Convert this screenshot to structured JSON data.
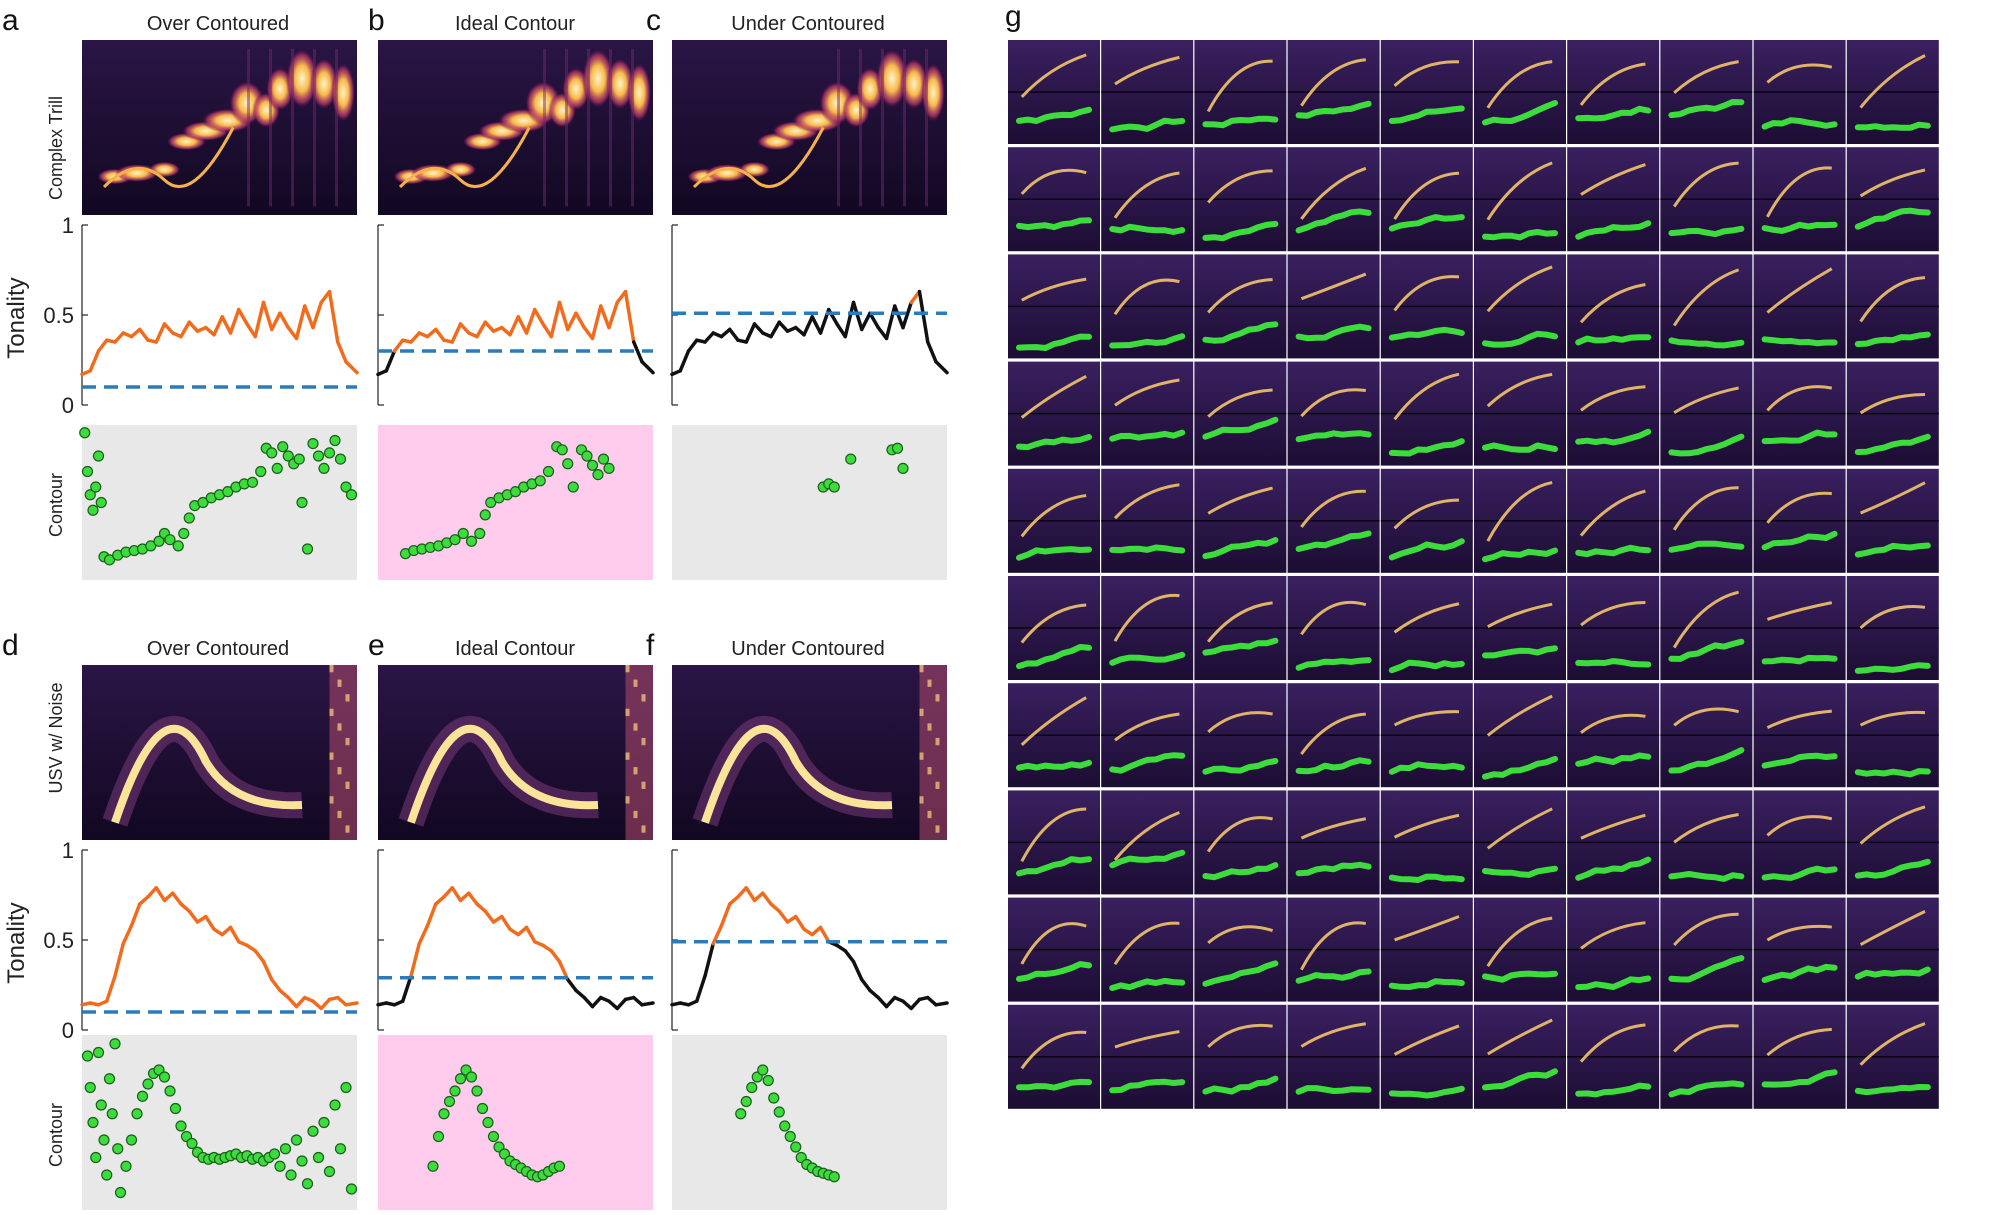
{
  "figure": {
    "panel_letters": [
      "a",
      "b",
      "c",
      "d",
      "e",
      "f",
      "g"
    ],
    "column_titles": [
      "Over Contoured",
      "Ideal Contour",
      "Under Contoured"
    ],
    "row_labels": {
      "top_spectrogram": "Complex Trill",
      "bottom_spectrogram": "USV w/ Noise",
      "tonality": "Tonality",
      "contour": "Contour"
    },
    "colors": {
      "above_threshold": "#f26b1d",
      "below_threshold": "#111111",
      "threshold": "#2b7bba",
      "contour_point": "#3ddc3d",
      "contour_point_edge": "#1b5e1b",
      "ideal_background": "#ffccee",
      "other_background": "#e8e8e8",
      "spectrogram_background": "#1a0b2e"
    },
    "grid_g": {
      "rows": 10,
      "cols": 10
    }
  },
  "chart_data": [
    {
      "type": "line",
      "panel": "a",
      "title": "Over Contoured",
      "ylabel": "Tonality",
      "ylim": [
        0,
        1
      ],
      "yticks": [
        "0",
        "0.5",
        "1"
      ],
      "threshold": 0.1,
      "x": [
        0,
        0.03,
        0.06,
        0.09,
        0.12,
        0.15,
        0.18,
        0.21,
        0.24,
        0.27,
        0.3,
        0.33,
        0.36,
        0.39,
        0.42,
        0.45,
        0.48,
        0.51,
        0.54,
        0.57,
        0.6,
        0.63,
        0.66,
        0.69,
        0.72,
        0.75,
        0.78,
        0.81,
        0.84,
        0.87,
        0.9,
        0.93,
        0.96,
        1.0
      ],
      "y": [
        0.17,
        0.19,
        0.3,
        0.36,
        0.35,
        0.4,
        0.38,
        0.42,
        0.36,
        0.35,
        0.45,
        0.4,
        0.38,
        0.46,
        0.41,
        0.43,
        0.39,
        0.49,
        0.4,
        0.53,
        0.45,
        0.38,
        0.57,
        0.42,
        0.51,
        0.43,
        0.37,
        0.55,
        0.43,
        0.57,
        0.63,
        0.35,
        0.24,
        0.18
      ]
    },
    {
      "type": "line",
      "panel": "b",
      "title": "Ideal Contour",
      "ylabel": "Tonality",
      "ylim": [
        0,
        1
      ],
      "threshold": 0.3,
      "x": [
        0,
        0.03,
        0.06,
        0.09,
        0.12,
        0.15,
        0.18,
        0.21,
        0.24,
        0.27,
        0.3,
        0.33,
        0.36,
        0.39,
        0.42,
        0.45,
        0.48,
        0.51,
        0.54,
        0.57,
        0.6,
        0.63,
        0.66,
        0.69,
        0.72,
        0.75,
        0.78,
        0.81,
        0.84,
        0.87,
        0.9,
        0.93,
        0.96,
        1.0
      ],
      "y": [
        0.17,
        0.19,
        0.3,
        0.36,
        0.35,
        0.4,
        0.38,
        0.42,
        0.36,
        0.35,
        0.45,
        0.4,
        0.38,
        0.46,
        0.41,
        0.43,
        0.39,
        0.49,
        0.4,
        0.53,
        0.45,
        0.38,
        0.57,
        0.42,
        0.51,
        0.43,
        0.37,
        0.55,
        0.43,
        0.57,
        0.63,
        0.35,
        0.24,
        0.18
      ]
    },
    {
      "type": "line",
      "panel": "c",
      "title": "Under Contoured",
      "ylabel": "Tonality",
      "ylim": [
        0,
        1
      ],
      "threshold": 0.51,
      "x": [
        0,
        0.03,
        0.06,
        0.09,
        0.12,
        0.15,
        0.18,
        0.21,
        0.24,
        0.27,
        0.3,
        0.33,
        0.36,
        0.39,
        0.42,
        0.45,
        0.48,
        0.51,
        0.54,
        0.57,
        0.6,
        0.63,
        0.66,
        0.69,
        0.72,
        0.75,
        0.78,
        0.81,
        0.84,
        0.87,
        0.9,
        0.93,
        0.96,
        1.0
      ],
      "y": [
        0.17,
        0.19,
        0.3,
        0.36,
        0.35,
        0.4,
        0.38,
        0.42,
        0.36,
        0.35,
        0.45,
        0.4,
        0.38,
        0.46,
        0.41,
        0.43,
        0.39,
        0.49,
        0.4,
        0.53,
        0.45,
        0.38,
        0.57,
        0.42,
        0.51,
        0.43,
        0.37,
        0.55,
        0.43,
        0.57,
        0.63,
        0.35,
        0.24,
        0.18
      ]
    },
    {
      "type": "line",
      "panel": "d",
      "title": "Over Contoured",
      "ylabel": "Tonality",
      "ylim": [
        0,
        1
      ],
      "yticks": [
        "0",
        "0.5",
        "1"
      ],
      "threshold": 0.1,
      "x": [
        0,
        0.03,
        0.06,
        0.09,
        0.12,
        0.15,
        0.18,
        0.21,
        0.24,
        0.27,
        0.3,
        0.33,
        0.36,
        0.39,
        0.42,
        0.45,
        0.48,
        0.51,
        0.54,
        0.57,
        0.6,
        0.63,
        0.66,
        0.69,
        0.72,
        0.75,
        0.78,
        0.81,
        0.84,
        0.87,
        0.9,
        0.93,
        0.96,
        1.0
      ],
      "y": [
        0.14,
        0.15,
        0.14,
        0.16,
        0.3,
        0.48,
        0.58,
        0.7,
        0.74,
        0.79,
        0.72,
        0.76,
        0.7,
        0.66,
        0.6,
        0.63,
        0.56,
        0.53,
        0.57,
        0.49,
        0.47,
        0.44,
        0.38,
        0.28,
        0.22,
        0.18,
        0.13,
        0.18,
        0.16,
        0.12,
        0.17,
        0.18,
        0.14,
        0.15
      ]
    },
    {
      "type": "line",
      "panel": "e",
      "title": "Ideal Contour",
      "ylabel": "Tonality",
      "ylim": [
        0,
        1
      ],
      "threshold": 0.29,
      "x": [
        0,
        0.03,
        0.06,
        0.09,
        0.12,
        0.15,
        0.18,
        0.21,
        0.24,
        0.27,
        0.3,
        0.33,
        0.36,
        0.39,
        0.42,
        0.45,
        0.48,
        0.51,
        0.54,
        0.57,
        0.6,
        0.63,
        0.66,
        0.69,
        0.72,
        0.75,
        0.78,
        0.81,
        0.84,
        0.87,
        0.9,
        0.93,
        0.96,
        1.0
      ],
      "y": [
        0.14,
        0.15,
        0.14,
        0.16,
        0.3,
        0.48,
        0.58,
        0.7,
        0.74,
        0.79,
        0.72,
        0.76,
        0.7,
        0.66,
        0.6,
        0.63,
        0.56,
        0.53,
        0.57,
        0.49,
        0.47,
        0.44,
        0.38,
        0.28,
        0.22,
        0.18,
        0.13,
        0.18,
        0.16,
        0.12,
        0.17,
        0.18,
        0.14,
        0.15
      ]
    },
    {
      "type": "line",
      "panel": "f",
      "title": "Under Contoured",
      "ylabel": "Tonality",
      "ylim": [
        0,
        1
      ],
      "threshold": 0.49,
      "x": [
        0,
        0.03,
        0.06,
        0.09,
        0.12,
        0.15,
        0.18,
        0.21,
        0.24,
        0.27,
        0.3,
        0.33,
        0.36,
        0.39,
        0.42,
        0.45,
        0.48,
        0.51,
        0.54,
        0.57,
        0.6,
        0.63,
        0.66,
        0.69,
        0.72,
        0.75,
        0.78,
        0.81,
        0.84,
        0.87,
        0.9,
        0.93,
        0.96,
        1.0
      ],
      "y": [
        0.14,
        0.15,
        0.14,
        0.16,
        0.3,
        0.48,
        0.58,
        0.7,
        0.74,
        0.79,
        0.72,
        0.76,
        0.7,
        0.66,
        0.6,
        0.63,
        0.56,
        0.53,
        0.57,
        0.49,
        0.47,
        0.44,
        0.38,
        0.28,
        0.22,
        0.18,
        0.13,
        0.18,
        0.16,
        0.12,
        0.17,
        0.18,
        0.14,
        0.15
      ]
    },
    {
      "type": "scatter",
      "panel": "a",
      "ylabel": "Contour",
      "points": [
        [
          0.01,
          0.95
        ],
        [
          0.02,
          0.7
        ],
        [
          0.03,
          0.55
        ],
        [
          0.04,
          0.45
        ],
        [
          0.05,
          0.6
        ],
        [
          0.06,
          0.8
        ],
        [
          0.07,
          0.5
        ],
        [
          0.08,
          0.15
        ],
        [
          0.1,
          0.13
        ],
        [
          0.13,
          0.16
        ],
        [
          0.16,
          0.18
        ],
        [
          0.19,
          0.19
        ],
        [
          0.22,
          0.2
        ],
        [
          0.25,
          0.22
        ],
        [
          0.28,
          0.25
        ],
        [
          0.3,
          0.3
        ],
        [
          0.32,
          0.26
        ],
        [
          0.35,
          0.22
        ],
        [
          0.37,
          0.3
        ],
        [
          0.39,
          0.4
        ],
        [
          0.41,
          0.48
        ],
        [
          0.44,
          0.5
        ],
        [
          0.47,
          0.53
        ],
        [
          0.5,
          0.55
        ],
        [
          0.53,
          0.57
        ],
        [
          0.56,
          0.6
        ],
        [
          0.59,
          0.62
        ],
        [
          0.62,
          0.63
        ],
        [
          0.65,
          0.7
        ],
        [
          0.67,
          0.85
        ],
        [
          0.69,
          0.82
        ],
        [
          0.71,
          0.72
        ],
        [
          0.73,
          0.86
        ],
        [
          0.75,
          0.8
        ],
        [
          0.77,
          0.75
        ],
        [
          0.79,
          0.78
        ],
        [
          0.8,
          0.5
        ],
        [
          0.82,
          0.2
        ],
        [
          0.84,
          0.88
        ],
        [
          0.86,
          0.8
        ],
        [
          0.88,
          0.72
        ],
        [
          0.9,
          0.82
        ],
        [
          0.92,
          0.9
        ],
        [
          0.94,
          0.78
        ],
        [
          0.96,
          0.6
        ],
        [
          0.98,
          0.55
        ]
      ]
    },
    {
      "type": "scatter",
      "panel": "b",
      "ylabel": "Contour",
      "points": [
        [
          0.1,
          0.17
        ],
        [
          0.13,
          0.19
        ],
        [
          0.16,
          0.2
        ],
        [
          0.19,
          0.21
        ],
        [
          0.22,
          0.22
        ],
        [
          0.25,
          0.24
        ],
        [
          0.28,
          0.26
        ],
        [
          0.31,
          0.3
        ],
        [
          0.34,
          0.25
        ],
        [
          0.37,
          0.3
        ],
        [
          0.39,
          0.42
        ],
        [
          0.41,
          0.5
        ],
        [
          0.44,
          0.53
        ],
        [
          0.47,
          0.55
        ],
        [
          0.5,
          0.57
        ],
        [
          0.53,
          0.6
        ],
        [
          0.56,
          0.62
        ],
        [
          0.59,
          0.64
        ],
        [
          0.62,
          0.7
        ],
        [
          0.65,
          0.86
        ],
        [
          0.67,
          0.84
        ],
        [
          0.69,
          0.75
        ],
        [
          0.71,
          0.6
        ],
        [
          0.74,
          0.84
        ],
        [
          0.76,
          0.8
        ],
        [
          0.78,
          0.74
        ],
        [
          0.8,
          0.68
        ],
        [
          0.82,
          0.78
        ],
        [
          0.84,
          0.72
        ]
      ]
    },
    {
      "type": "scatter",
      "panel": "c",
      "ylabel": "Contour",
      "points": [
        [
          0.55,
          0.6
        ],
        [
          0.57,
          0.62
        ],
        [
          0.59,
          0.6
        ],
        [
          0.65,
          0.78
        ],
        [
          0.8,
          0.84
        ],
        [
          0.82,
          0.85
        ],
        [
          0.84,
          0.72
        ]
      ]
    },
    {
      "type": "scatter",
      "panel": "d",
      "ylabel": "Contour",
      "points": [
        [
          0.02,
          0.88
        ],
        [
          0.03,
          0.7
        ],
        [
          0.04,
          0.5
        ],
        [
          0.05,
          0.3
        ],
        [
          0.06,
          0.9
        ],
        [
          0.07,
          0.6
        ],
        [
          0.08,
          0.4
        ],
        [
          0.09,
          0.2
        ],
        [
          0.1,
          0.75
        ],
        [
          0.11,
          0.55
        ],
        [
          0.12,
          0.95
        ],
        [
          0.13,
          0.35
        ],
        [
          0.14,
          0.1
        ],
        [
          0.16,
          0.25
        ],
        [
          0.18,
          0.4
        ],
        [
          0.2,
          0.55
        ],
        [
          0.22,
          0.65
        ],
        [
          0.24,
          0.72
        ],
        [
          0.26,
          0.78
        ],
        [
          0.28,
          0.8
        ],
        [
          0.3,
          0.76
        ],
        [
          0.32,
          0.68
        ],
        [
          0.34,
          0.58
        ],
        [
          0.36,
          0.48
        ],
        [
          0.38,
          0.42
        ],
        [
          0.4,
          0.38
        ],
        [
          0.42,
          0.33
        ],
        [
          0.44,
          0.3
        ],
        [
          0.46,
          0.29
        ],
        [
          0.48,
          0.3
        ],
        [
          0.5,
          0.29
        ],
        [
          0.52,
          0.3
        ],
        [
          0.54,
          0.31
        ],
        [
          0.56,
          0.32
        ],
        [
          0.58,
          0.3
        ],
        [
          0.6,
          0.31
        ],
        [
          0.62,
          0.29
        ],
        [
          0.64,
          0.3
        ],
        [
          0.66,
          0.28
        ],
        [
          0.68,
          0.3
        ],
        [
          0.7,
          0.32
        ],
        [
          0.72,
          0.25
        ],
        [
          0.74,
          0.35
        ],
        [
          0.76,
          0.2
        ],
        [
          0.78,
          0.4
        ],
        [
          0.8,
          0.28
        ],
        [
          0.82,
          0.15
        ],
        [
          0.84,
          0.45
        ],
        [
          0.86,
          0.3
        ],
        [
          0.88,
          0.5
        ],
        [
          0.9,
          0.22
        ],
        [
          0.92,
          0.6
        ],
        [
          0.94,
          0.35
        ],
        [
          0.96,
          0.7
        ],
        [
          0.98,
          0.12
        ]
      ]
    },
    {
      "type": "scatter",
      "panel": "e",
      "ylabel": "Contour",
      "points": [
        [
          0.2,
          0.25
        ],
        [
          0.22,
          0.42
        ],
        [
          0.24,
          0.55
        ],
        [
          0.26,
          0.62
        ],
        [
          0.28,
          0.68
        ],
        [
          0.3,
          0.75
        ],
        [
          0.32,
          0.8
        ],
        [
          0.34,
          0.76
        ],
        [
          0.36,
          0.68
        ],
        [
          0.38,
          0.58
        ],
        [
          0.4,
          0.5
        ],
        [
          0.42,
          0.42
        ],
        [
          0.44,
          0.36
        ],
        [
          0.46,
          0.32
        ],
        [
          0.48,
          0.28
        ],
        [
          0.5,
          0.26
        ],
        [
          0.52,
          0.24
        ],
        [
          0.54,
          0.22
        ],
        [
          0.56,
          0.2
        ],
        [
          0.58,
          0.19
        ],
        [
          0.6,
          0.2
        ],
        [
          0.62,
          0.22
        ],
        [
          0.64,
          0.24
        ],
        [
          0.66,
          0.25
        ]
      ]
    },
    {
      "type": "scatter",
      "panel": "f",
      "ylabel": "Contour",
      "points": [
        [
          0.25,
          0.55
        ],
        [
          0.27,
          0.62
        ],
        [
          0.29,
          0.7
        ],
        [
          0.31,
          0.76
        ],
        [
          0.33,
          0.8
        ],
        [
          0.35,
          0.74
        ],
        [
          0.37,
          0.64
        ],
        [
          0.39,
          0.56
        ],
        [
          0.41,
          0.48
        ],
        [
          0.43,
          0.42
        ],
        [
          0.45,
          0.36
        ],
        [
          0.47,
          0.3
        ],
        [
          0.49,
          0.26
        ],
        [
          0.51,
          0.24
        ],
        [
          0.53,
          0.22
        ],
        [
          0.55,
          0.21
        ],
        [
          0.57,
          0.2
        ],
        [
          0.59,
          0.19
        ]
      ]
    }
  ]
}
